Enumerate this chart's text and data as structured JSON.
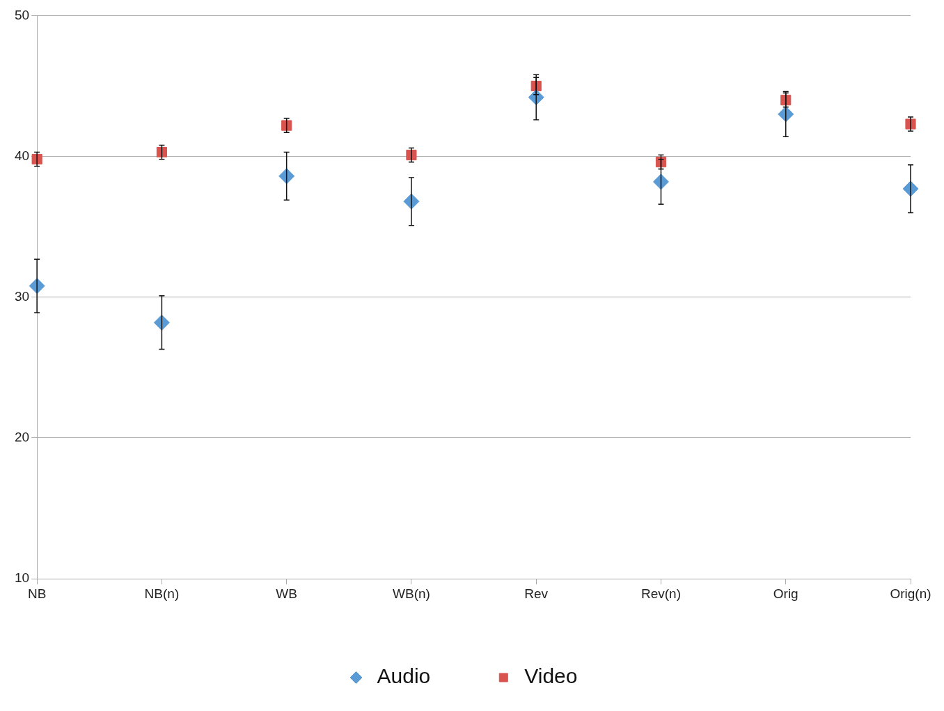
{
  "chart_data": {
    "type": "scatter",
    "categories": [
      "NB",
      "NB(n)",
      "WB",
      "WB(n)",
      "Rev",
      "Rev(n)",
      "Orig",
      "Orig(n)"
    ],
    "series": [
      {
        "name": "Audio",
        "color": "#5b9bd5",
        "marker": "diamond",
        "values": [
          30.8,
          28.2,
          38.6,
          36.8,
          44.2,
          38.2,
          43.0,
          37.7
        ],
        "errors": [
          1.9,
          1.9,
          1.7,
          1.7,
          1.6,
          1.6,
          1.6,
          1.7
        ]
      },
      {
        "name": "Video",
        "color": "#d9534f",
        "marker": "square",
        "values": [
          39.8,
          40.3,
          42.2,
          40.1,
          45.0,
          39.6,
          44.0,
          42.3
        ],
        "errors": [
          0.5,
          0.5,
          0.5,
          0.5,
          0.6,
          0.5,
          0.5,
          0.5
        ]
      }
    ],
    "ylim": [
      10,
      50
    ],
    "yticks": [
      10,
      20,
      30,
      40,
      50
    ],
    "grid": "y",
    "legend": "bottom"
  }
}
